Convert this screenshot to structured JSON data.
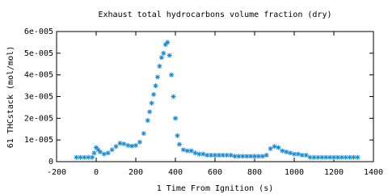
{
  "chart_data": {
    "type": "scatter",
    "title": "Exhaust total hydrocarbons volume fraction (dry)",
    "x_label": "1 Time From Ignition (s)",
    "y_label": "61 THCstack (mol/mol)",
    "marker": "star",
    "color": "#1a8ad4",
    "xlim": [
      -200,
      1400
    ],
    "xticks": [
      -200,
      0,
      200,
      400,
      600,
      800,
      1000,
      1200,
      1400
    ],
    "ylim": [
      0,
      6e-05
    ],
    "yticks": [
      0,
      {
        "value": 1e-05,
        "label": "1e-005"
      },
      {
        "value": 2e-05,
        "label": "2e-005"
      },
      {
        "value": 3e-05,
        "label": "3e-005"
      },
      {
        "value": 4e-05,
        "label": "4e-005"
      },
      {
        "value": 5e-05,
        "label": "5e-005"
      },
      {
        "value": 6e-05,
        "label": "6e-005"
      }
    ],
    "x": [
      -100,
      -80,
      -60,
      -40,
      -20,
      -10,
      0,
      10,
      20,
      40,
      60,
      80,
      100,
      120,
      140,
      160,
      180,
      200,
      220,
      240,
      260,
      270,
      280,
      290,
      300,
      310,
      320,
      330,
      340,
      350,
      360,
      370,
      380,
      390,
      400,
      410,
      420,
      440,
      460,
      480,
      500,
      520,
      540,
      560,
      580,
      600,
      620,
      640,
      660,
      680,
      700,
      720,
      740,
      760,
      780,
      800,
      820,
      840,
      860,
      880,
      900,
      920,
      940,
      960,
      980,
      1000,
      1020,
      1040,
      1060,
      1080,
      1100,
      1120,
      1140,
      1160,
      1180,
      1200,
      1220,
      1240,
      1260,
      1280,
      1300,
      1320
    ],
    "values": [
      2e-06,
      2e-06,
      2e-06,
      2e-06,
      2e-06,
      4e-06,
      6.5e-06,
      5.5e-06,
      4.5e-06,
      3.5e-06,
      4e-06,
      5.5e-06,
      7e-06,
      8.5e-06,
      8.2e-06,
      7.5e-06,
      7.2e-06,
      7.5e-06,
      9e-06,
      1.3e-05,
      1.9e-05,
      2.3e-05,
      2.7e-05,
      3.1e-05,
      3.5e-05,
      3.9e-05,
      4.4e-05,
      4.8e-05,
      5e-05,
      5.4e-05,
      5.5e-05,
      4.9e-05,
      4e-05,
      3e-05,
      2e-05,
      1.2e-05,
      8e-06,
      5.5e-06,
      5e-06,
      5e-06,
      4e-06,
      3.5e-06,
      3.5e-06,
      3e-06,
      3e-06,
      3e-06,
      3e-06,
      3e-06,
      3e-06,
      3e-06,
      2.5e-06,
      2.5e-06,
      2.5e-06,
      2.5e-06,
      2.5e-06,
      2.5e-06,
      2.5e-06,
      2.5e-06,
      3e-06,
      6e-06,
      7e-06,
      6.5e-06,
      5e-06,
      4.5e-06,
      4e-06,
      3.5e-06,
      3.5e-06,
      3e-06,
      3e-06,
      2e-06,
      2e-06,
      2e-06,
      2e-06,
      2e-06,
      2e-06,
      2e-06,
      2e-06,
      2e-06,
      2e-06,
      2e-06,
      2e-06,
      2e-06
    ]
  }
}
